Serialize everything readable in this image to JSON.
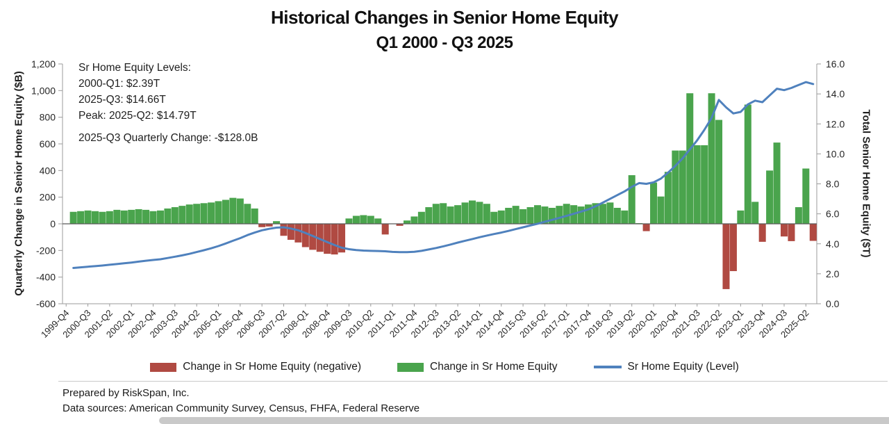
{
  "footer": {
    "prepared_by": "Prepared by RiskSpan, Inc.",
    "sources": "Data sources: American Community Survey, Census, FHFA, Federal Reserve"
  },
  "chart_data": {
    "type": "bar",
    "title": "Historical Changes in Senior Home Equity",
    "subtitle": "Q1 2000 - Q3 2025",
    "grid": false,
    "legend_position": "bottom",
    "annotation": [
      "Sr Home Equity Levels:",
      "2000-Q1: $2.39T",
      "2025-Q3: $14.66T",
      "Peak: 2025-Q2: $14.79T",
      "2025-Q3 Quarterly Change: -$128.0B"
    ],
    "left_axis": {
      "label": "Quarterly Change in Senior Home Equity ($B)",
      "min": -600,
      "max": 1200,
      "step": 200,
      "unit": "$B"
    },
    "right_axis": {
      "label": "Total Senior Home Equity ($T)",
      "min": 0,
      "max": 16,
      "step": 2,
      "unit": "$T"
    },
    "x_tick_every": 3,
    "categories": [
      "1999-Q4",
      "2000-Q1",
      "2000-Q2",
      "2000-Q3",
      "2000-Q4",
      "2001-Q1",
      "2001-Q2",
      "2001-Q3",
      "2001-Q4",
      "2002-Q1",
      "2002-Q2",
      "2002-Q3",
      "2002-Q4",
      "2003-Q1",
      "2003-Q2",
      "2003-Q3",
      "2003-Q4",
      "2004-Q1",
      "2004-Q2",
      "2004-Q3",
      "2004-Q4",
      "2005-Q1",
      "2005-Q2",
      "2005-Q3",
      "2005-Q4",
      "2006-Q1",
      "2006-Q2",
      "2006-Q3",
      "2006-Q4",
      "2007-Q1",
      "2007-Q2",
      "2007-Q3",
      "2007-Q4",
      "2008-Q1",
      "2008-Q2",
      "2008-Q3",
      "2008-Q4",
      "2009-Q1",
      "2009-Q2",
      "2009-Q3",
      "2009-Q4",
      "2010-Q1",
      "2010-Q2",
      "2010-Q3",
      "2010-Q4",
      "2011-Q1",
      "2011-Q2",
      "2011-Q3",
      "2011-Q4",
      "2012-Q1",
      "2012-Q2",
      "2012-Q3",
      "2012-Q4",
      "2013-Q1",
      "2013-Q2",
      "2013-Q3",
      "2013-Q4",
      "2014-Q1",
      "2014-Q2",
      "2014-Q3",
      "2014-Q4",
      "2015-Q1",
      "2015-Q2",
      "2015-Q3",
      "2015-Q4",
      "2016-Q1",
      "2016-Q2",
      "2016-Q3",
      "2016-Q4",
      "2017-Q1",
      "2017-Q2",
      "2017-Q3",
      "2017-Q4",
      "2018-Q1",
      "2018-Q2",
      "2018-Q3",
      "2018-Q4",
      "2019-Q1",
      "2019-Q2",
      "2019-Q3",
      "2019-Q4",
      "2020-Q1",
      "2020-Q2",
      "2020-Q3",
      "2020-Q4",
      "2021-Q1",
      "2021-Q2",
      "2021-Q3",
      "2021-Q4",
      "2022-Q1",
      "2022-Q2",
      "2022-Q3",
      "2022-Q4",
      "2023-Q1",
      "2023-Q2",
      "2023-Q3",
      "2023-Q4",
      "2024-Q1",
      "2024-Q2",
      "2024-Q3",
      "2024-Q4",
      "2025-Q1",
      "2025-Q2",
      "2025-Q3"
    ],
    "series": [
      {
        "name": "Change in Sr Home Equity",
        "type": "bar",
        "axis": "left",
        "unit": "$B",
        "color_positive": "#4aa44d",
        "color_negative": "#b04a42",
        "values": [
          null,
          90,
          95,
          100,
          95,
          90,
          95,
          105,
          100,
          105,
          110,
          105,
          95,
          100,
          115,
          125,
          135,
          145,
          150,
          155,
          160,
          170,
          180,
          195,
          190,
          150,
          115,
          -25,
          -20,
          20,
          -90,
          -120,
          -140,
          -175,
          -195,
          -210,
          -225,
          -230,
          -215,
          40,
          60,
          65,
          60,
          40,
          -80,
          0,
          -15,
          25,
          55,
          90,
          125,
          150,
          155,
          130,
          140,
          160,
          175,
          165,
          150,
          90,
          100,
          120,
          135,
          110,
          125,
          140,
          130,
          120,
          135,
          150,
          140,
          130,
          145,
          155,
          150,
          160,
          120,
          100,
          365,
          5,
          -55,
          310,
          205,
          390,
          550,
          550,
          980,
          590,
          590,
          980,
          780,
          -490,
          -355,
          100,
          895,
          165,
          -135,
          400,
          610,
          -95,
          -130,
          125,
          415,
          -128
        ]
      },
      {
        "name": "Sr Home Equity (Level)",
        "type": "line",
        "axis": "right",
        "unit": "$T",
        "color": "#4f81bd",
        "values": [
          null,
          2.39,
          2.43,
          2.47,
          2.51,
          2.55,
          2.6,
          2.65,
          2.7,
          2.75,
          2.81,
          2.87,
          2.92,
          2.97,
          3.05,
          3.14,
          3.23,
          3.33,
          3.45,
          3.57,
          3.7,
          3.85,
          4.02,
          4.2,
          4.38,
          4.58,
          4.75,
          4.9,
          5.0,
          5.08,
          5.1,
          5.02,
          4.9,
          4.72,
          4.52,
          4.32,
          4.12,
          3.92,
          3.74,
          3.64,
          3.58,
          3.55,
          3.53,
          3.52,
          3.5,
          3.46,
          3.44,
          3.44,
          3.47,
          3.53,
          3.62,
          3.72,
          3.83,
          3.95,
          4.08,
          4.2,
          4.32,
          4.44,
          4.55,
          4.65,
          4.75,
          4.86,
          4.98,
          5.1,
          5.22,
          5.34,
          5.47,
          5.6,
          5.73,
          5.86,
          6.0,
          6.15,
          6.3,
          6.5,
          6.75,
          7.0,
          7.25,
          7.5,
          7.8,
          8.05,
          8.0,
          8.1,
          8.35,
          8.75,
          9.2,
          9.7,
          10.3,
          10.9,
          11.6,
          12.4,
          13.6,
          13.1,
          12.7,
          12.8,
          13.3,
          13.55,
          13.45,
          13.9,
          14.35,
          14.25,
          14.4,
          14.6,
          14.79,
          14.66
        ]
      }
    ],
    "legend": [
      {
        "label": "Change in Sr Home Equity (negative)",
        "color": "#b04a42",
        "swatch": "rect"
      },
      {
        "label": "Change in Sr Home Equity",
        "color": "#4aa44d",
        "swatch": "rect"
      },
      {
        "label": "Sr Home Equity (Level)",
        "color": "#4f81bd",
        "swatch": "line"
      }
    ]
  }
}
